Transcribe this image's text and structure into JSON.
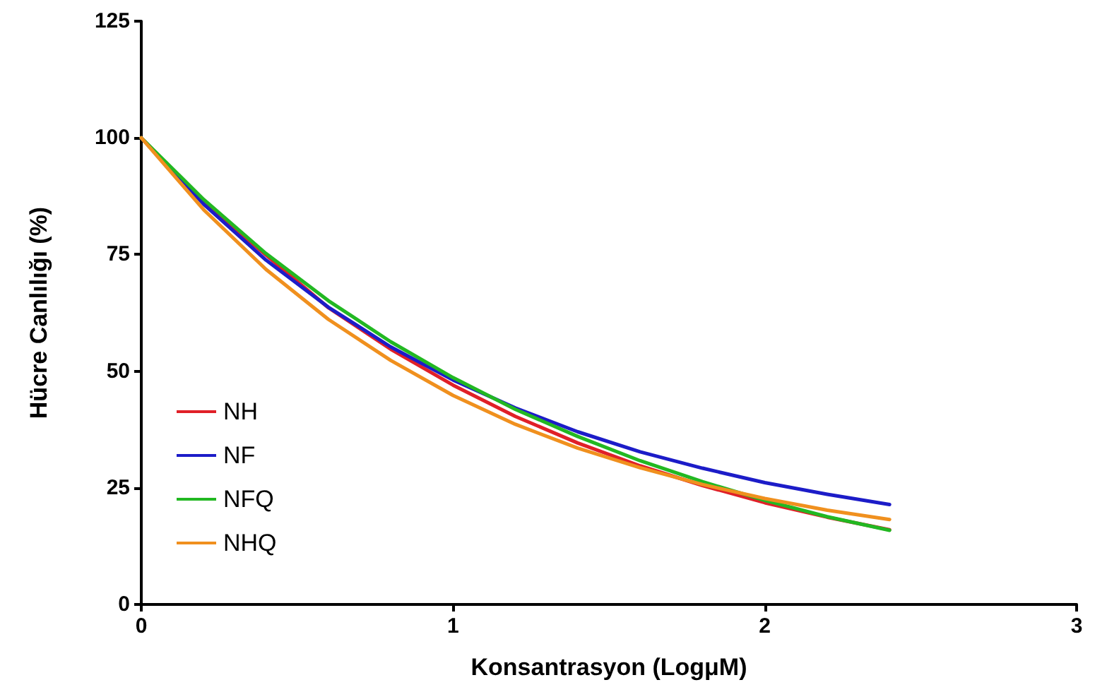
{
  "chart_data": {
    "type": "line",
    "xlabel": "Konsantrasyon (LogμM)",
    "ylabel": "Hücre Canlılığı (%)",
    "x": [
      0,
      0.2,
      0.4,
      0.6,
      0.8,
      1,
      1.2,
      1.4,
      1.6,
      1.8,
      2,
      2.2,
      2.4
    ],
    "series": [
      {
        "name": "NH",
        "color": "#e02028",
        "values": [
          100,
          86.1,
          74.9,
          63.6,
          54.7,
          47.0,
          40.3,
          34.6,
          29.7,
          25.5,
          21.8,
          18.7,
          16.0
        ]
      },
      {
        "name": "NF",
        "color": "#1c1cc8",
        "values": [
          100,
          85.8,
          73.8,
          63.7,
          55.2,
          48.1,
          42.1,
          37.0,
          32.7,
          29.2,
          26.1,
          23.6,
          21.4
        ]
      },
      {
        "name": "NFQ",
        "color": "#22b822",
        "values": [
          100,
          86.8,
          75.2,
          65.1,
          56.3,
          48.6,
          41.8,
          36.0,
          30.8,
          26.3,
          22.3,
          18.8,
          15.9
        ]
      },
      {
        "name": "NHQ",
        "color": "#f0901e",
        "values": [
          100,
          84.6,
          71.8,
          61.1,
          52.3,
          44.8,
          38.6,
          33.5,
          29.3,
          25.7,
          22.7,
          20.2,
          18.2
        ]
      }
    ],
    "xlim": [
      0,
      3
    ],
    "xticks": [
      0,
      1,
      2,
      3
    ],
    "ylim": [
      0,
      125
    ],
    "yticks": [
      0,
      25,
      50,
      75,
      100,
      125
    ],
    "grid": false,
    "legend": "left",
    "marker": "none",
    "line_style": "solid"
  }
}
